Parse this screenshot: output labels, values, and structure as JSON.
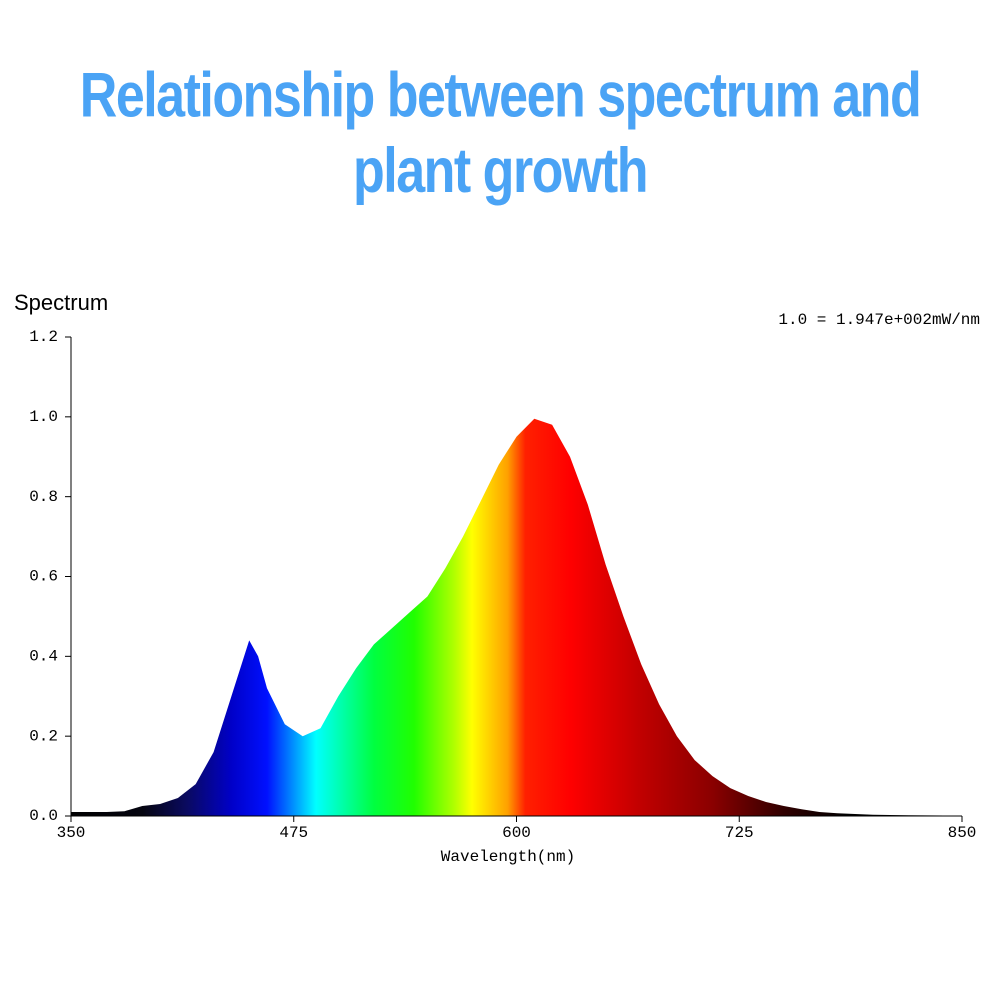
{
  "chart_data": {
    "type": "area",
    "title": "Relationship between spectrum and plant growth",
    "y_label": "Spectrum",
    "x_label": "Wavelength(nm)",
    "annotation": "1.0 = 1.947e+002mW/nm",
    "x": [
      350,
      360,
      370,
      380,
      390,
      400,
      410,
      420,
      430,
      440,
      450,
      455,
      460,
      470,
      480,
      490,
      500,
      510,
      520,
      530,
      540,
      550,
      560,
      570,
      580,
      590,
      600,
      610,
      620,
      630,
      640,
      650,
      660,
      670,
      680,
      690,
      700,
      710,
      720,
      730,
      740,
      750,
      760,
      770,
      780,
      790,
      800,
      820,
      850
    ],
    "values": [
      0.01,
      0.01,
      0.01,
      0.012,
      0.025,
      0.03,
      0.045,
      0.08,
      0.16,
      0.3,
      0.44,
      0.4,
      0.32,
      0.23,
      0.2,
      0.22,
      0.3,
      0.37,
      0.43,
      0.47,
      0.51,
      0.55,
      0.62,
      0.7,
      0.79,
      0.88,
      0.95,
      0.995,
      0.98,
      0.9,
      0.78,
      0.63,
      0.5,
      0.38,
      0.28,
      0.2,
      0.14,
      0.1,
      0.07,
      0.05,
      0.035,
      0.025,
      0.017,
      0.01,
      0.007,
      0.005,
      0.003,
      0.002,
      0.001
    ],
    "xlim": [
      350,
      850
    ],
    "xticks": [
      350,
      475,
      600,
      725,
      850
    ],
    "ylim": [
      0,
      1.2
    ],
    "yticks": [
      {
        "value": 0,
        "label": "0.0"
      },
      0.2,
      0.4,
      0.6,
      0.8,
      {
        "value": 1,
        "label": "1.0"
      },
      1.2
    ]
  }
}
